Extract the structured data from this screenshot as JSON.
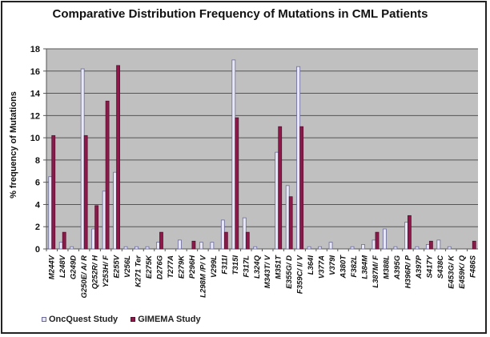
{
  "chart_data": {
    "type": "bar",
    "title": "Comparative Distribution Frequency of Mutations in CML Patients",
    "xlabel": "",
    "ylabel": "% frequency of Mutations",
    "ylim": [
      0,
      18
    ],
    "yticks": [
      0,
      2,
      4,
      6,
      8,
      10,
      12,
      14,
      16,
      18
    ],
    "grid": true,
    "legend_position": "bottom-left",
    "categories": [
      "M244V",
      "L248V",
      "G249D",
      "G250E/ A/ R",
      "Q252R/ H",
      "Y253H/ F",
      "E255V",
      "V256L",
      "K271 Ter",
      "E275K",
      "D276G",
      "T277A",
      "E279K",
      "P296H",
      "L298M /P/ V",
      "V299L",
      "F311I",
      "T315I",
      "F317L",
      "L324Q",
      "M343T/ V",
      "M351T",
      "E355G/ D",
      "F359C/ I/ V",
      "L364I",
      "V377A",
      "V379I",
      "A380T",
      "F382L",
      "L384M",
      "L387M/ F",
      "M388L",
      "A395G",
      "H396R/ P",
      "A397P",
      "S417Y",
      "S438C",
      "E453G/ K",
      "E459K/ Q",
      "F486S"
    ],
    "series": [
      {
        "name": "OncQuest Study",
        "color": "#e8e8f8",
        "stroke": "#6a6a9a",
        "values": [
          6.5,
          0.6,
          0.2,
          16.2,
          1.8,
          5.2,
          6.9,
          0.2,
          0.2,
          0.2,
          0.6,
          0,
          0.8,
          0,
          0.6,
          0.6,
          2.6,
          17.0,
          2.8,
          0.2,
          0,
          8.7,
          5.7,
          16.4,
          0.2,
          0.2,
          0.6,
          0,
          0.2,
          0.4,
          0.8,
          1.8,
          0.2,
          2.4,
          0.2,
          0.4,
          0.8,
          0.2,
          0,
          0
        ]
      },
      {
        "name": "GIMEMA Study",
        "color": "#8b1a4a",
        "stroke": "#5a0f30",
        "values": [
          10.2,
          1.5,
          0,
          10.2,
          3.9,
          13.3,
          16.5,
          0,
          0,
          0,
          1.5,
          0,
          0,
          0.7,
          0,
          0,
          1.5,
          11.8,
          1.5,
          0,
          0,
          11.0,
          4.7,
          11.0,
          0,
          0,
          0,
          0,
          0,
          0,
          1.5,
          0,
          0,
          3.0,
          0,
          0.7,
          0,
          0,
          0,
          0.7
        ]
      }
    ]
  }
}
